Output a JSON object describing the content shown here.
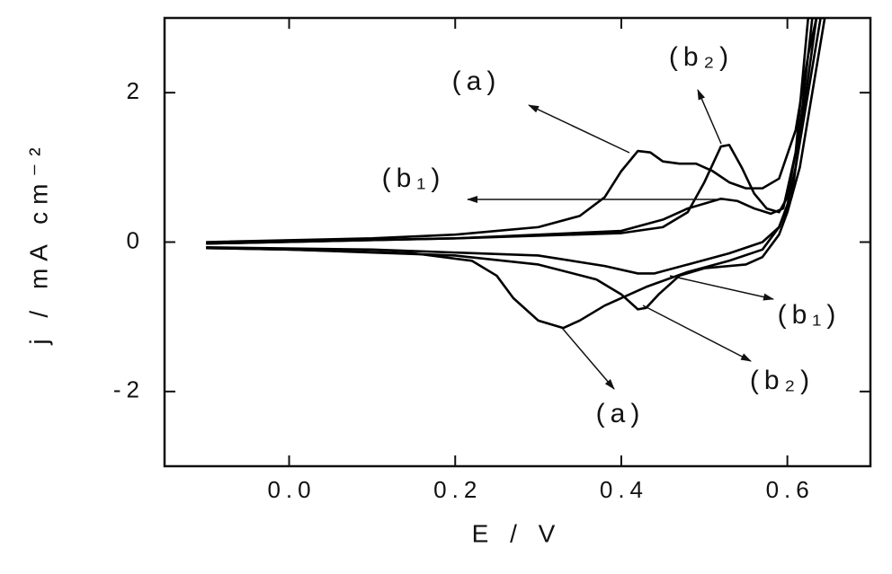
{
  "chart_data": {
    "type": "line",
    "xlabel": "E / V",
    "ylabel": "j / mA cm⁻²",
    "xlim": [
      -0.15,
      0.7
    ],
    "ylim": [
      -3,
      3
    ],
    "xticks": [
      {
        "value": 0,
        "label": "0.0"
      },
      0.2,
      0.4,
      0.6
    ],
    "yticks": [
      -2,
      0,
      2
    ],
    "series": [
      {
        "color": "#000000",
        "x": [
          -0.1,
          0.1,
          0.2,
          0.3,
          0.35,
          0.38,
          0.4,
          0.42,
          0.435,
          0.45,
          0.47,
          0.49,
          0.51,
          0.53,
          0.55,
          0.57,
          0.59,
          0.61,
          0.625,
          0.635,
          0.64,
          0.625,
          0.61,
          0.6,
          0.59,
          0.57,
          0.53,
          0.48,
          0.43,
          0.38,
          0.35,
          0.33,
          0.3,
          0.27,
          0.25,
          0.22,
          0.15,
          0.0,
          -0.1
        ],
        "values": [
          0.0,
          0.05,
          0.1,
          0.2,
          0.35,
          0.6,
          0.95,
          1.22,
          1.2,
          1.08,
          1.05,
          1.05,
          0.95,
          0.8,
          0.72,
          0.72,
          0.85,
          1.5,
          2.5,
          3.0,
          3.0,
          2.0,
          1.0,
          0.5,
          0.2,
          -0.1,
          -0.25,
          -0.4,
          -0.6,
          -0.85,
          -1.05,
          -1.15,
          -1.05,
          -0.75,
          -0.45,
          -0.25,
          -0.15,
          -0.1,
          -0.08
        ]
      },
      {
        "color": "#000000",
        "x": [
          -0.1,
          0.2,
          0.4,
          0.45,
          0.48,
          0.52,
          0.54,
          0.56,
          0.58,
          0.595,
          0.61,
          0.625,
          0.635,
          0.62,
          0.605,
          0.59,
          0.57,
          0.53,
          0.48,
          0.44,
          0.42,
          0.38,
          0.3,
          0.1,
          -0.1
        ],
        "values": [
          -0.02,
          0.05,
          0.15,
          0.3,
          0.45,
          0.58,
          0.55,
          0.45,
          0.38,
          0.45,
          1.2,
          3.0,
          3.0,
          1.8,
          0.6,
          0.2,
          0.0,
          -0.15,
          -0.3,
          -0.42,
          -0.42,
          -0.32,
          -0.18,
          -0.1,
          -0.07
        ]
      },
      {
        "color": "#000000",
        "x": [
          -0.1,
          0.2,
          0.4,
          0.45,
          0.48,
          0.5,
          0.52,
          0.53,
          0.545,
          0.56,
          0.575,
          0.59,
          0.6,
          0.615,
          0.63,
          0.645,
          0.63,
          0.615,
          0.6,
          0.59,
          0.57,
          0.55,
          0.5,
          0.47,
          0.445,
          0.43,
          0.42,
          0.4,
          0.37,
          0.3,
          0.2,
          0.0,
          -0.1
        ],
        "values": [
          -0.02,
          0.05,
          0.12,
          0.2,
          0.4,
          0.8,
          1.28,
          1.3,
          1.0,
          0.65,
          0.45,
          0.4,
          0.6,
          1.5,
          3.0,
          3.0,
          2.0,
          1.0,
          0.4,
          0.1,
          -0.2,
          -0.3,
          -0.35,
          -0.45,
          -0.7,
          -0.88,
          -0.9,
          -0.7,
          -0.5,
          -0.3,
          -0.18,
          -0.1,
          -0.08
        ]
      }
    ],
    "annotations": [
      "(a)",
      "(b₂)",
      "(b₁)",
      "(b₁)",
      "(b₂)",
      "(a)"
    ]
  }
}
